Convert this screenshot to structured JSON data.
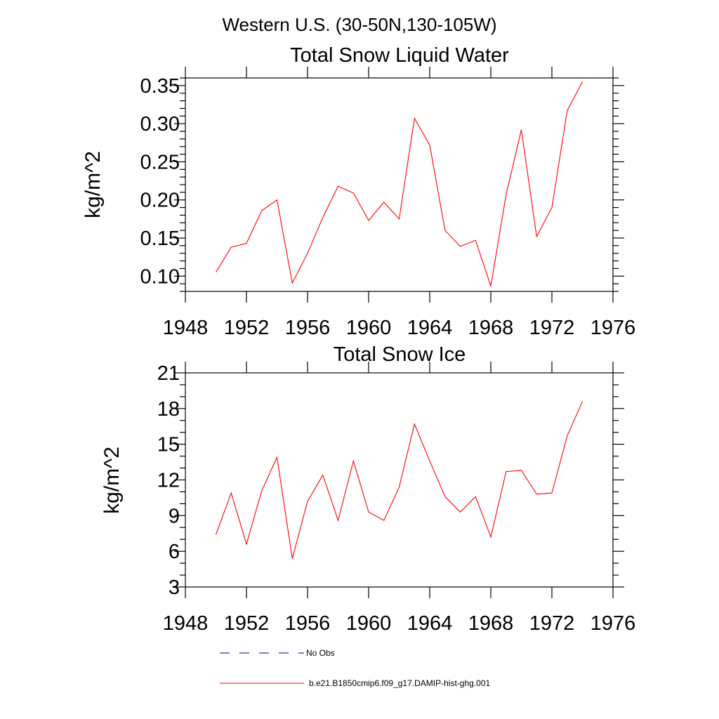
{
  "suptitle": "Western U.S. (30-50N,130-105W)",
  "chart_data": [
    {
      "type": "line",
      "title": "Total Snow Liquid Water",
      "xlabel": "",
      "ylabel": "kg/m^2",
      "xlim": [
        1948,
        1976
      ],
      "ylim": [
        0.08,
        0.36
      ],
      "xticks": [
        1948,
        1952,
        1956,
        1960,
        1964,
        1968,
        1972,
        1976
      ],
      "xtick_labels": [
        "1948",
        "1952",
        "1956",
        "1960",
        "1964",
        "1968",
        "1972",
        "1976"
      ],
      "yticks": [
        0.1,
        0.15,
        0.2,
        0.25,
        0.3,
        0.35
      ],
      "ytick_labels": [
        "0.10",
        "0.15",
        "0.20",
        "0.25",
        "0.30",
        "0.35"
      ],
      "yminor_step": 0.01,
      "grid": false,
      "series": [
        {
          "name": "b.e21.B1850cmip6.f09_g17.DAMIP-hist-ghg.001",
          "color": "#ff0000",
          "x": [
            1950,
            1951,
            1952,
            1953,
            1954,
            1955,
            1956,
            1957,
            1958,
            1959,
            1960,
            1961,
            1962,
            1963,
            1964,
            1965,
            1966,
            1967,
            1968,
            1969,
            1970,
            1971,
            1972,
            1973,
            1974
          ],
          "y": [
            0.105,
            0.138,
            0.143,
            0.186,
            0.2,
            0.091,
            0.13,
            0.177,
            0.218,
            0.209,
            0.173,
            0.197,
            0.175,
            0.307,
            0.272,
            0.16,
            0.139,
            0.147,
            0.087,
            0.207,
            0.292,
            0.152,
            0.19,
            0.317,
            0.355
          ]
        }
      ]
    },
    {
      "type": "line",
      "title": "Total Snow Ice",
      "xlabel": "",
      "ylabel": "kg/m^2",
      "xlim": [
        1948,
        1976
      ],
      "ylim": [
        3,
        21
      ],
      "xticks": [
        1948,
        1952,
        1956,
        1960,
        1964,
        1968,
        1972,
        1976
      ],
      "xtick_labels": [
        "1948",
        "1952",
        "1956",
        "1960",
        "1964",
        "1968",
        "1972",
        "1976"
      ],
      "yticks": [
        3,
        6,
        9,
        12,
        15,
        18,
        21
      ],
      "ytick_labels": [
        "3",
        "6",
        "9",
        "12",
        "15",
        "18",
        "21"
      ],
      "yminor_step": 1,
      "grid": false,
      "series": [
        {
          "name": "b.e21.B1850cmip6.f09_g17.DAMIP-hist-ghg.001",
          "color": "#ff0000",
          "x": [
            1950,
            1951,
            1952,
            1953,
            1954,
            1955,
            1956,
            1957,
            1958,
            1959,
            1960,
            1961,
            1962,
            1963,
            1964,
            1965,
            1966,
            1967,
            1968,
            1969,
            1970,
            1971,
            1972,
            1973,
            1974
          ],
          "y": [
            7.4,
            10.9,
            6.6,
            11.1,
            13.9,
            5.4,
            10.2,
            12.4,
            8.6,
            13.6,
            9.3,
            8.6,
            11.4,
            16.7,
            13.6,
            10.6,
            9.3,
            10.6,
            7.2,
            12.7,
            12.8,
            10.8,
            10.9,
            15.7,
            18.6
          ]
        }
      ]
    }
  ],
  "legend": {
    "placement": "bottom",
    "items": [
      {
        "label": "No Obs",
        "color": "#000080",
        "style": "dashed"
      },
      {
        "label": "b.e21.B1850cmip6.f09_g17.DAMIP-hist-ghg.001",
        "color": "#ff0000",
        "style": "solid"
      }
    ]
  }
}
